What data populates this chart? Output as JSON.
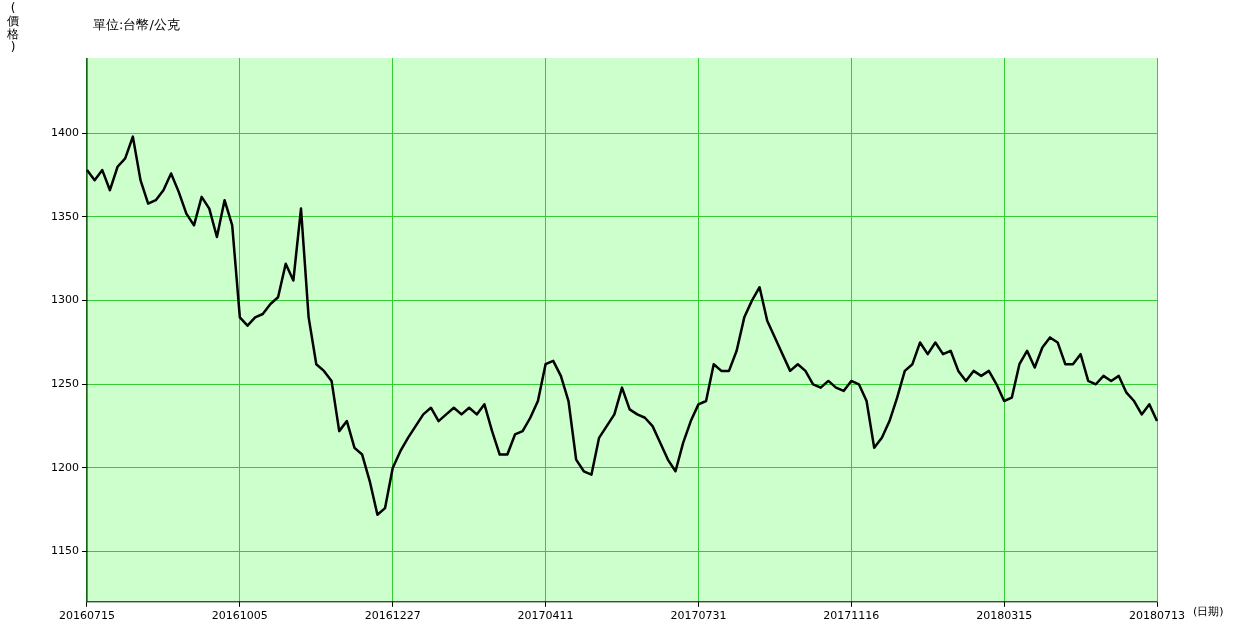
{
  "chart_data": {
    "type": "line",
    "subtitle": "單位:台幣/公克",
    "ylabel": "(價格)",
    "xlabel": "(日期)",
    "categories": [
      "20160715",
      null,
      null,
      null,
      null,
      null,
      null,
      null,
      null,
      null,
      null,
      null,
      null,
      null,
      null,
      null,
      null,
      null,
      null,
      null,
      "20161005",
      null,
      null,
      null,
      null,
      null,
      null,
      null,
      null,
      null,
      null,
      null,
      null,
      null,
      null,
      null,
      null,
      null,
      null,
      null,
      "20161227",
      null,
      null,
      null,
      null,
      null,
      null,
      null,
      null,
      null,
      null,
      null,
      null,
      null,
      null,
      null,
      null,
      null,
      null,
      null,
      "20170411",
      null,
      null,
      null,
      null,
      null,
      null,
      null,
      null,
      null,
      null,
      null,
      null,
      null,
      null,
      null,
      null,
      null,
      null,
      null,
      "20170731",
      null,
      null,
      null,
      null,
      null,
      null,
      null,
      null,
      null,
      null,
      null,
      null,
      null,
      null,
      null,
      null,
      null,
      null,
      null,
      "20171116",
      null,
      null,
      null,
      null,
      null,
      null,
      null,
      null,
      null,
      null,
      null,
      null,
      null,
      null,
      null,
      null,
      null,
      null,
      null,
      "20180315",
      null,
      null,
      null,
      null,
      null,
      null,
      null,
      null,
      null,
      null,
      null,
      null,
      null,
      null,
      null,
      null,
      null,
      null,
      null,
      "20180713"
    ],
    "series": [
      {
        "color": "#000000",
        "values": [
          1378,
          1372,
          1378,
          1366,
          1380,
          1385,
          1398,
          1372,
          1358,
          1360,
          1366,
          1376,
          1365,
          1352,
          1345,
          1362,
          1355,
          1338,
          1360,
          1345,
          1290,
          1285,
          1290,
          1292,
          1298,
          1302,
          1322,
          1312,
          1355,
          1290,
          1262,
          1258,
          1252,
          1222,
          1228,
          1212,
          1208,
          1192,
          1172,
          1176,
          1200,
          1210,
          1218,
          1225,
          1232,
          1236,
          1228,
          1232,
          1236,
          1232,
          1236,
          1232,
          1238,
          1222,
          1208,
          1208,
          1220,
          1222,
          1230,
          1240,
          1262,
          1264,
          1255,
          1240,
          1205,
          1198,
          1196,
          1218,
          1225,
          1232,
          1248,
          1235,
          1232,
          1230,
          1225,
          1215,
          1205,
          1198,
          1215,
          1228,
          1238,
          1240,
          1262,
          1258,
          1258,
          1270,
          1290,
          1300,
          1308,
          1288,
          1278,
          1268,
          1258,
          1262,
          1258,
          1250,
          1248,
          1252,
          1248,
          1246,
          1252,
          1250,
          1240,
          1212,
          1218,
          1228,
          1242,
          1258,
          1262,
          1275,
          1268,
          1275,
          1268,
          1270,
          1258,
          1252,
          1258,
          1255,
          1258,
          1250,
          1240,
          1242,
          1262,
          1270,
          1260,
          1272,
          1278,
          1275,
          1262,
          1262,
          1268,
          1252,
          1250,
          1255,
          1252,
          1255,
          1245,
          1240,
          1232,
          1238,
          1228
        ]
      }
    ],
    "ylim": [
      1120,
      1445
    ],
    "yticks": [
      1150,
      1200,
      1250,
      1300,
      1350,
      1400
    ],
    "grid": true,
    "legend": false,
    "marker": "none",
    "line_style": "solid"
  }
}
